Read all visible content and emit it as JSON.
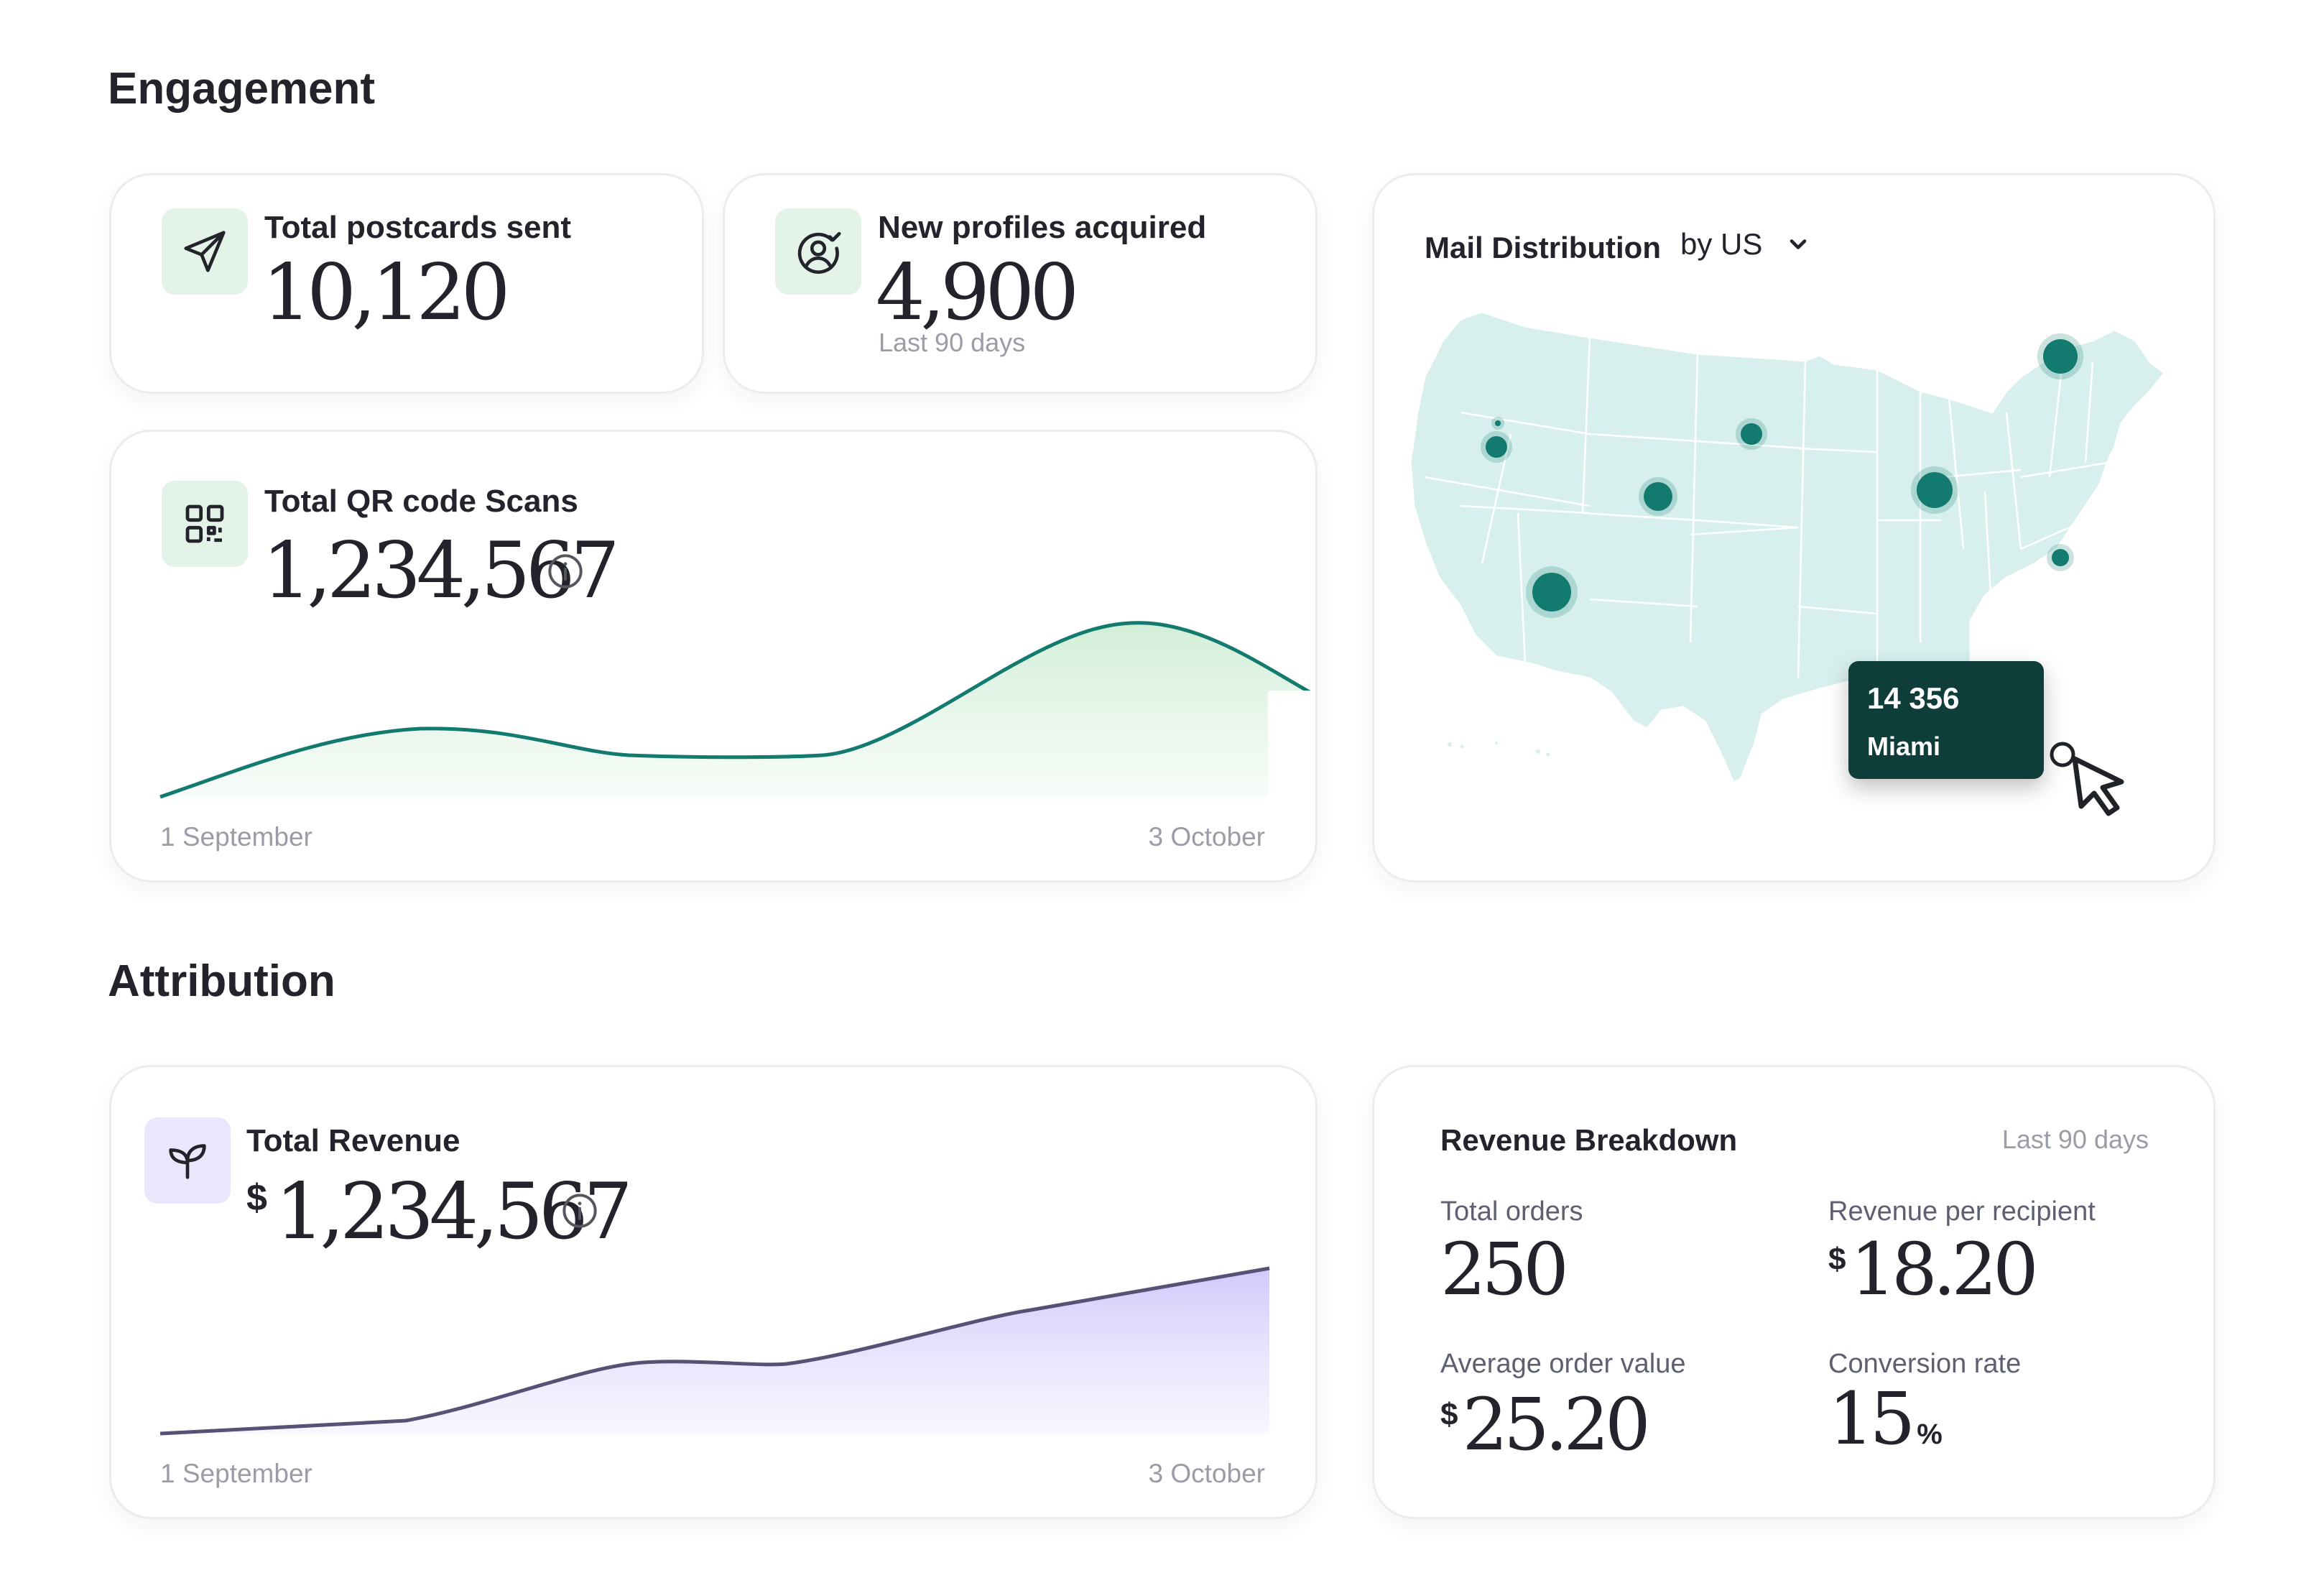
{
  "engagement": {
    "title": "Engagement",
    "postcards": {
      "label": "Total postcards sent",
      "value": "10,120",
      "icon": "send-icon"
    },
    "profiles": {
      "label": "New profiles acquired",
      "value": "4,900",
      "period": "Last 90 days",
      "icon": "user-check-icon"
    },
    "qr": {
      "label": "Total QR code Scans",
      "value": "1,234,567",
      "icon": "qr-code-icon",
      "x_start": "1 September",
      "x_end": "3 October",
      "line_color": "#127a6e"
    },
    "map": {
      "title": "Mail Distribution",
      "filter": "by US",
      "tooltip_value": "14 356",
      "tooltip_city": "Miami",
      "land_color": "#d7f0ee",
      "dot_color": "#127a6e"
    }
  },
  "attribution": {
    "title": "Attribution",
    "revenue": {
      "label": "Total Revenue",
      "currency": "$",
      "value": "1,234,567",
      "icon": "sprout-icon",
      "x_start": "1 September",
      "x_end": "3 October",
      "line_color": "#555276"
    },
    "breakdown": {
      "title": "Revenue Breakdown",
      "period": "Last 90 days",
      "metrics": [
        {
          "label": "Total orders",
          "value": "250"
        },
        {
          "label": "Revenue per recipient",
          "currency": "$",
          "value": "18.20"
        },
        {
          "label": "Average order value",
          "currency": "$",
          "value": "25.20"
        },
        {
          "label": "Conversion rate",
          "value": "15",
          "suffix": "%"
        }
      ]
    }
  }
}
